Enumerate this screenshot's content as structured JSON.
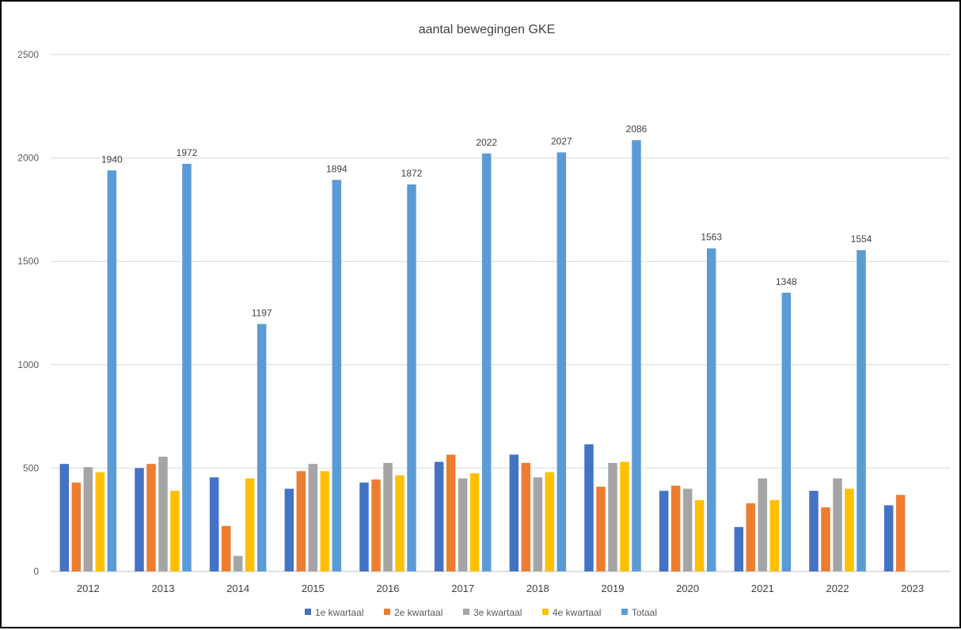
{
  "chart_data": {
    "type": "bar",
    "title": "aantal bewegingen GKE",
    "xlabel": "",
    "ylabel": "",
    "ylim": [
      0,
      2500
    ],
    "yticks": [
      0,
      500,
      1000,
      1500,
      2000,
      2500
    ],
    "grid": true,
    "legend_position": "bottom",
    "categories": [
      "2012",
      "2013",
      "2014",
      "2015",
      "2016",
      "2017",
      "2018",
      "2019",
      "2020",
      "2021",
      "2022",
      "2023"
    ],
    "series": [
      {
        "name": "1e kwartaal",
        "color": "#4472C4",
        "values": [
          520,
          500,
          455,
          400,
          430,
          530,
          565,
          615,
          390,
          215,
          390,
          320
        ]
      },
      {
        "name": "2e kwartaal",
        "color": "#ED7D31",
        "values": [
          430,
          520,
          220,
          485,
          445,
          565,
          525,
          410,
          415,
          330,
          310,
          370
        ]
      },
      {
        "name": "3e kwartaal",
        "color": "#A5A5A5",
        "values": [
          505,
          555,
          75,
          520,
          525,
          450,
          455,
          525,
          400,
          450,
          450,
          null
        ]
      },
      {
        "name": "4e kwartaal",
        "color": "#FFC000",
        "values": [
          480,
          390,
          450,
          485,
          465,
          475,
          480,
          530,
          345,
          345,
          400,
          null
        ]
      },
      {
        "name": "Totaal",
        "color": "#5B9BD5",
        "values": [
          1940,
          1972,
          1197,
          1894,
          1872,
          2022,
          2027,
          2086,
          1563,
          1348,
          1554,
          null
        ],
        "data_labels": [
          "1940",
          "1972",
          "1197",
          "1894",
          "1872",
          "2022",
          "2027",
          "2086",
          "1563",
          "1348",
          "1554",
          ""
        ]
      }
    ]
  }
}
